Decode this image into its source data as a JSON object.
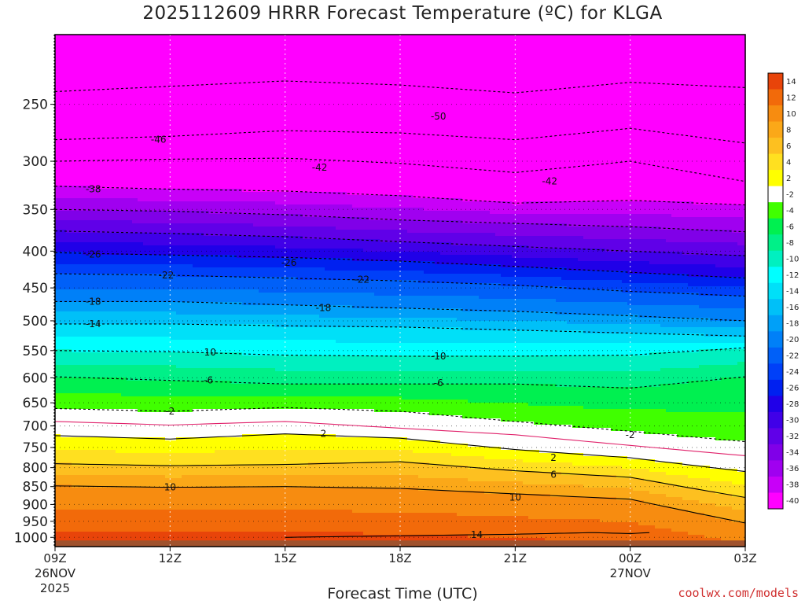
{
  "chart_data": {
    "type": "heatmap",
    "title": "2025112609 HRRR Forecast Temperature (ºC) for KLGA",
    "xlabel": "Forecast Time (UTC)",
    "credit": "coolwx.com/models",
    "x_ticks": [
      {
        "hour": 0,
        "label": "09Z",
        "sub1": "26NOV",
        "sub2": "2025"
      },
      {
        "hour": 3,
        "label": "12Z",
        "sub1": "",
        "sub2": ""
      },
      {
        "hour": 6,
        "label": "15Z",
        "sub1": "",
        "sub2": ""
      },
      {
        "hour": 9,
        "label": "18Z",
        "sub1": "",
        "sub2": ""
      },
      {
        "hour": 12,
        "label": "21Z",
        "sub1": "",
        "sub2": ""
      },
      {
        "hour": 15,
        "label": "00Z",
        "sub1": "27NOV",
        "sub2": ""
      },
      {
        "hour": 18,
        "label": "03Z",
        "sub1": "",
        "sub2": ""
      }
    ],
    "x_range_hours": [
      0,
      18
    ],
    "y_axis": "pressure (log scale)",
    "y_ticks": [
      250,
      300,
      350,
      400,
      450,
      500,
      550,
      600,
      650,
      700,
      750,
      800,
      850,
      900,
      950,
      1000
    ],
    "y_range": [
      200,
      1030
    ],
    "colorbar": {
      "levels": [
        14,
        12,
        10,
        8,
        6,
        4,
        2,
        -2,
        -4,
        -6,
        -8,
        -10,
        -12,
        -14,
        -16,
        -18,
        -20,
        -22,
        -24,
        -26,
        -28,
        -30,
        -32,
        -34,
        -36,
        -38,
        -40
      ],
      "colors": [
        "#e8440a",
        "#f26a0a",
        "#f78c10",
        "#fba818",
        "#fdc020",
        "#ffe020",
        "#ffff00",
        "#ffffff",
        "#40ff00",
        "#00f050",
        "#00f088",
        "#00f0c0",
        "#00ffff",
        "#00e0f8",
        "#00c0f8",
        "#00a0f8",
        "#0080f8",
        "#0060f8",
        "#0040f8",
        "#0020f0",
        "#2000e8",
        "#4000e8",
        "#6000e8",
        "#8000e8",
        "#a000f0",
        "#c800f8",
        "#ff00ff"
      ]
    },
    "contours": [
      {
        "value": -50,
        "style": "dashed",
        "color": "#000000",
        "hours": [
          0,
          3,
          6,
          9,
          12,
          15,
          18
        ],
        "pressure": [
          240,
          236,
          232,
          235,
          241,
          233,
          237
        ]
      },
      {
        "value": -46,
        "style": "dashed",
        "color": "#000000",
        "hours": [
          0,
          3,
          6,
          9,
          12,
          15,
          18
        ],
        "pressure": [
          280,
          277,
          272,
          274,
          280,
          270,
          283
        ]
      },
      {
        "value": -42,
        "style": "dashed",
        "color": "#000000",
        "hours": [
          0,
          3,
          6,
          9,
          12,
          15,
          18
        ],
        "pressure": [
          300,
          298,
          297,
          302,
          311,
          300,
          320
        ]
      },
      {
        "value": -38,
        "style": "dashed",
        "color": "#000000",
        "hours": [
          0,
          3,
          6,
          9,
          12,
          15,
          18
        ],
        "pressure": [
          325,
          328,
          330,
          335,
          343,
          340,
          345
        ]
      },
      {
        "value": -34,
        "style": "dashed",
        "color": "#000000",
        "hours": [
          0,
          3,
          6,
          9,
          12,
          15,
          18
        ],
        "pressure": [
          350,
          352,
          356,
          362,
          366,
          370,
          376
        ]
      },
      {
        "value": -30,
        "style": "dashed",
        "color": "#000000",
        "hours": [
          0,
          3,
          6,
          9,
          12,
          15,
          18
        ],
        "pressure": [
          375,
          378,
          382,
          388,
          394,
          400,
          406
        ]
      },
      {
        "value": -26,
        "style": "dashed",
        "color": "#000000",
        "hours": [
          0,
          3,
          6,
          9,
          12,
          15,
          18
        ],
        "pressure": [
          402,
          405,
          408,
          413,
          420,
          428,
          436
        ]
      },
      {
        "value": -22,
        "style": "dashed",
        "color": "#000000",
        "hours": [
          0,
          3,
          6,
          9,
          12,
          15,
          18
        ],
        "pressure": [
          430,
          432,
          436,
          440,
          446,
          455,
          462
        ]
      },
      {
        "value": -18,
        "style": "dashed",
        "color": "#000000",
        "hours": [
          0,
          3,
          6,
          9,
          12,
          15,
          18
        ],
        "pressure": [
          470,
          470,
          475,
          480,
          485,
          492,
          500
        ]
      },
      {
        "value": -14,
        "style": "dashed",
        "color": "#000000",
        "hours": [
          0,
          3,
          6,
          9,
          12,
          15,
          18
        ],
        "pressure": [
          505,
          505,
          508,
          510,
          515,
          520,
          525
        ]
      },
      {
        "value": -10,
        "style": "dashed",
        "color": "#000000",
        "hours": [
          0,
          3,
          6,
          9,
          12,
          15,
          18
        ],
        "pressure": [
          550,
          552,
          558,
          560,
          560,
          558,
          545
        ]
      },
      {
        "value": -6,
        "style": "dashed",
        "color": "#000000",
        "hours": [
          0,
          3,
          6,
          9,
          12,
          15,
          18
        ],
        "pressure": [
          598,
          605,
          612,
          612,
          612,
          620,
          598
        ]
      },
      {
        "value": -2,
        "style": "dashed",
        "color": "#000000",
        "hours": [
          0,
          3,
          6,
          9,
          12,
          15,
          18
        ],
        "pressure": [
          662,
          668,
          660,
          668,
          690,
          712,
          736
        ]
      },
      {
        "value": 0,
        "style": "solid",
        "color": "#e0206a",
        "hours": [
          0,
          3,
          6,
          9,
          12,
          15,
          18
        ],
        "pressure": [
          690,
          698,
          690,
          705,
          720,
          745,
          770
        ]
      },
      {
        "value": 2,
        "style": "solid",
        "color": "#000000",
        "hours": [
          0,
          3,
          6,
          9,
          12,
          15,
          18
        ],
        "pressure": [
          722,
          730,
          718,
          728,
          755,
          775,
          810
        ]
      },
      {
        "value": 6,
        "style": "solid",
        "color": "#000000",
        "hours": [
          0,
          3,
          6,
          9,
          12,
          15,
          18
        ],
        "pressure": [
          790,
          795,
          792,
          785,
          808,
          825,
          880
        ]
      },
      {
        "value": 10,
        "style": "solid",
        "color": "#000000",
        "hours": [
          0,
          3,
          6,
          9,
          12,
          15,
          18
        ],
        "pressure": [
          848,
          852,
          850,
          855,
          870,
          885,
          955
        ]
      },
      {
        "value": 14,
        "style": "solid",
        "color": "#000000",
        "hours": [
          6,
          9,
          12,
          14,
          15,
          15.5
        ],
        "pressure": [
          1000,
          995,
          990,
          985,
          988,
          985
        ]
      }
    ],
    "contour_labels": [
      {
        "text": "-50",
        "hour": 10,
        "pressure": 260
      },
      {
        "text": "-46",
        "hour": 2.7,
        "pressure": 280
      },
      {
        "text": "-42",
        "hour": 6.9,
        "pressure": 306
      },
      {
        "text": "-42",
        "hour": 12.9,
        "pressure": 320
      },
      {
        "text": "-38",
        "hour": 1,
        "pressure": 328
      },
      {
        "text": "-26",
        "hour": 1,
        "pressure": 404
      },
      {
        "text": "-26",
        "hour": 6.1,
        "pressure": 415
      },
      {
        "text": "-22",
        "hour": 2.9,
        "pressure": 432
      },
      {
        "text": "-22",
        "hour": 8,
        "pressure": 438
      },
      {
        "text": "-18",
        "hour": 1,
        "pressure": 470
      },
      {
        "text": "-18",
        "hour": 7,
        "pressure": 480
      },
      {
        "text": "-14",
        "hour": 1,
        "pressure": 505
      },
      {
        "text": "-10",
        "hour": 4,
        "pressure": 553
      },
      {
        "text": "-10",
        "hour": 10,
        "pressure": 560
      },
      {
        "text": "-6",
        "hour": 4,
        "pressure": 605
      },
      {
        "text": "-6",
        "hour": 10,
        "pressure": 610
      },
      {
        "text": "-2",
        "hour": 3,
        "pressure": 668
      },
      {
        "text": "-2",
        "hour": 15,
        "pressure": 720
      },
      {
        "text": "2",
        "hour": 7,
        "pressure": 718
      },
      {
        "text": "2",
        "hour": 13,
        "pressure": 775
      },
      {
        "text": "6",
        "hour": 13,
        "pressure": 818
      },
      {
        "text": "10",
        "hour": 3,
        "pressure": 852
      },
      {
        "text": "10",
        "hour": 12,
        "pressure": 880
      },
      {
        "text": "14",
        "hour": 11,
        "pressure": 992
      }
    ],
    "ground": {
      "color": "#a0522d",
      "pressure": 1010
    }
  }
}
